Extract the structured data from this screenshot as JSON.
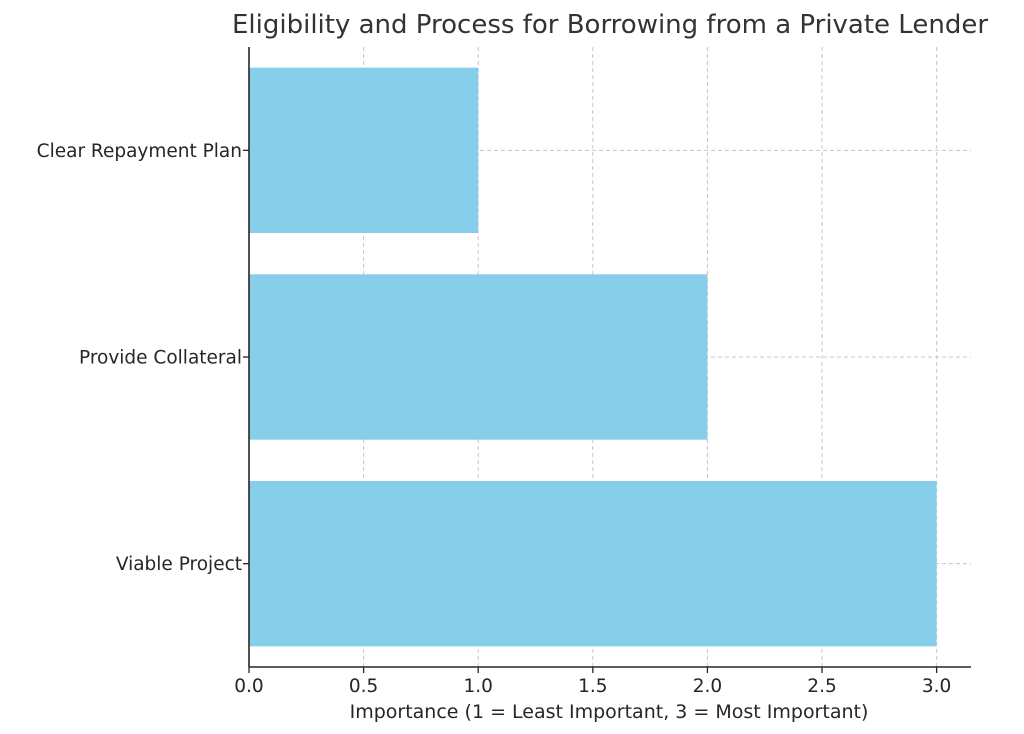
{
  "chart_data": {
    "type": "bar",
    "orientation": "horizontal",
    "title": "Eligibility and Process for Borrowing from a Private Lender",
    "xlabel": "Importance (1 = Least Important, 3 = Most Important)",
    "ylabel": "",
    "categories": [
      "Viable Project",
      "Provide Collateral",
      "Clear Repayment Plan"
    ],
    "values": [
      3,
      2,
      1
    ],
    "xlim": [
      0,
      3.15
    ],
    "x_ticks": [
      "0.0",
      "0.5",
      "1.0",
      "1.5",
      "2.0",
      "2.5",
      "3.0"
    ],
    "grid": true,
    "bar_color": "#87ceeb"
  }
}
